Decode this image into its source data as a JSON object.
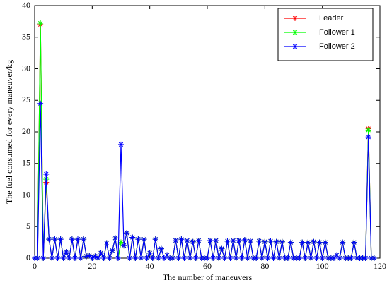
{
  "chart_data": {
    "type": "line",
    "xlabel": "The number of maneuvers",
    "ylabel": "The fuel consumed for every maneuver/kg",
    "x": [
      0,
      1,
      2,
      3,
      4,
      5,
      6,
      7,
      8,
      9,
      10,
      11,
      12,
      13,
      14,
      15,
      16,
      17,
      18,
      19,
      20,
      21,
      22,
      23,
      24,
      25,
      26,
      27,
      28,
      29,
      30,
      31,
      32,
      33,
      34,
      35,
      36,
      37,
      38,
      39,
      40,
      41,
      42,
      43,
      44,
      45,
      46,
      47,
      48,
      49,
      50,
      51,
      52,
      53,
      54,
      55,
      56,
      57,
      58,
      59,
      60,
      61,
      62,
      63,
      64,
      65,
      66,
      67,
      68,
      69,
      70,
      71,
      72,
      73,
      74,
      75,
      76,
      77,
      78,
      79,
      80,
      81,
      82,
      83,
      84,
      85,
      86,
      87,
      88,
      89,
      90,
      91,
      92,
      93,
      94,
      95,
      96,
      97,
      98,
      99,
      100,
      101,
      102,
      103,
      104,
      105,
      106,
      107,
      108,
      109,
      110,
      111,
      112,
      113,
      114,
      115,
      116,
      117,
      118
    ],
    "series": [
      {
        "name": "Leader",
        "color": "#ff0000",
        "values": [
          0,
          0,
          37,
          0,
          12,
          3,
          0,
          3,
          0,
          3,
          0,
          1,
          0,
          3,
          0,
          3,
          0,
          3,
          0.3,
          0.4,
          0,
          0.3,
          0,
          0.8,
          0,
          2.4,
          0,
          1.2,
          3.2,
          0,
          2.5,
          2,
          4,
          0,
          3.3,
          0,
          3,
          0,
          3,
          0,
          0.8,
          0,
          3,
          0,
          1.5,
          0,
          0.5,
          0,
          0,
          2.8,
          0,
          3,
          0,
          2.8,
          0,
          2.6,
          0,
          2.8,
          0,
          0,
          0,
          2.8,
          0,
          2.8,
          0,
          1.5,
          0,
          2.7,
          0,
          2.8,
          0,
          2.8,
          0,
          2.9,
          0,
          2.7,
          0,
          0,
          2.7,
          0,
          2.6,
          0,
          2.7,
          0,
          2.6,
          0,
          2.6,
          0,
          0,
          2.5,
          0,
          0,
          0,
          2.5,
          0,
          2.5,
          0,
          2.6,
          0,
          2.5,
          0,
          2.5,
          0,
          0,
          0,
          0.5,
          0,
          2.5,
          0,
          0,
          0,
          2.5,
          0,
          0,
          0,
          0,
          20.5,
          0,
          0
        ]
      },
      {
        "name": "Follower 1",
        "color": "#00ff00",
        "values": [
          0,
          0,
          37.2,
          0,
          12.5,
          3,
          0,
          3,
          0,
          3,
          0,
          1,
          0,
          3,
          0,
          3,
          0,
          3,
          0.3,
          0.4,
          0,
          0.3,
          0,
          0.8,
          0,
          2.4,
          0,
          1.2,
          3.2,
          0,
          2.5,
          2,
          4,
          0,
          3.3,
          0,
          3,
          0,
          3,
          0,
          0.8,
          0,
          3,
          0,
          1.5,
          0,
          0.5,
          0,
          0,
          2.8,
          0,
          3,
          0,
          2.8,
          0,
          2.6,
          0,
          2.8,
          0,
          0,
          0,
          2.8,
          0,
          2.8,
          0,
          1.5,
          0,
          2.7,
          0,
          2.8,
          0,
          2.8,
          0,
          2.9,
          0,
          2.7,
          0,
          0,
          2.7,
          0,
          2.6,
          0,
          2.7,
          0,
          2.6,
          0,
          2.6,
          0,
          0,
          2.5,
          0,
          0,
          0,
          2.5,
          0,
          2.5,
          0,
          2.6,
          0,
          2.5,
          0,
          2.5,
          0,
          0,
          0,
          0.5,
          0,
          2.5,
          0,
          0,
          0,
          2.5,
          0,
          0,
          0,
          0,
          20.3,
          0,
          0
        ]
      },
      {
        "name": "Follower 2",
        "color": "#0000ff",
        "values": [
          0,
          0,
          24.5,
          0,
          13.3,
          3,
          0,
          3,
          0,
          3,
          0,
          1,
          0,
          3,
          0,
          3,
          0,
          3,
          0.3,
          0.4,
          0,
          0.3,
          0,
          0.8,
          0,
          2.4,
          0,
          1.2,
          3.2,
          0,
          18,
          2,
          4,
          0,
          3.3,
          0,
          3,
          0,
          3,
          0,
          0.8,
          0,
          3,
          0,
          1.5,
          0,
          0.5,
          0,
          0,
          2.8,
          0,
          3,
          0,
          2.8,
          0,
          2.6,
          0,
          2.8,
          0,
          0,
          0,
          2.8,
          0,
          2.8,
          0,
          1.5,
          0,
          2.7,
          0,
          2.8,
          0,
          2.8,
          0,
          2.9,
          0,
          2.7,
          0,
          0,
          2.7,
          0,
          2.6,
          0,
          2.7,
          0,
          2.6,
          0,
          2.6,
          0,
          0,
          2.5,
          0,
          0,
          0,
          2.5,
          0,
          2.5,
          0,
          2.6,
          0,
          2.5,
          0,
          2.5,
          0,
          0,
          0,
          0.5,
          0,
          2.5,
          0,
          0,
          0,
          2.5,
          0,
          0,
          0,
          0,
          19.2,
          0,
          0
        ]
      }
    ],
    "xlim": [
      0,
      120
    ],
    "xticks": [
      0,
      20,
      40,
      60,
      80,
      100,
      120
    ],
    "ylim": [
      0,
      40
    ],
    "yticks": [
      0,
      5,
      10,
      15,
      20,
      25,
      30,
      35,
      40
    ],
    "legend": "upper right"
  }
}
